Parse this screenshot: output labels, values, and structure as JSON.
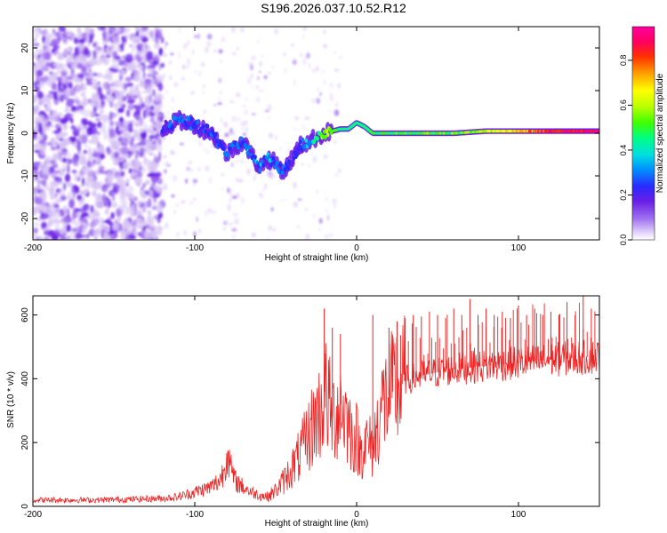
{
  "figure_title": "S196.2026.037.10.52.R12",
  "chart_data": [
    {
      "type": "heatmap",
      "name": "spectrogram",
      "xlabel": "Height of straight line (km)",
      "ylabel": "Frequency (Hz)",
      "xlim": [
        -200,
        150
      ],
      "ylim": [
        -25,
        25
      ],
      "x_ticks": [
        -200,
        -100,
        0,
        100
      ],
      "x_tick_labels": [
        "-200",
        "-100",
        "0",
        "100"
      ],
      "y_ticks": [
        -20,
        -10,
        0,
        10,
        20
      ],
      "y_tick_labels": [
        "-20",
        "-10",
        "0",
        "10",
        "20"
      ],
      "colorbar": {
        "label": "Normalized spectral amplitude",
        "range": [
          0,
          0.95
        ],
        "ticks": [
          0.0,
          0.2,
          0.4,
          0.6,
          0.8
        ],
        "tick_labels": [
          "0.0",
          "0.2",
          "0.4",
          "0.6",
          "0.8"
        ],
        "colormap": [
          "#ffffff",
          "#dcc8f5",
          "#a070f0",
          "#6a1fe6",
          "#2a2aff",
          "#0080ff",
          "#00e0e0",
          "#00ff80",
          "#40ff00",
          "#c0ff00",
          "#ffff00",
          "#ffa000",
          "#ff3000",
          "#ff0060",
          "#ff00a0"
        ]
      },
      "ridge": {
        "x": [
          -120,
          -110,
          -100,
          -95,
          -90,
          -85,
          -80,
          -75,
          -70,
          -65,
          -60,
          -55,
          -50,
          -45,
          -40,
          -35,
          -30,
          -25,
          -20,
          -15,
          -10,
          -5,
          0,
          5,
          10,
          20,
          40,
          60,
          80,
          100,
          120,
          150
        ],
        "freq": [
          1,
          3,
          2,
          1,
          0,
          -2,
          -5,
          -3,
          -2,
          -5,
          -8,
          -6,
          -7,
          -9,
          -6,
          -3,
          -2,
          -1,
          0,
          0.5,
          1,
          1,
          2.5,
          1.5,
          0,
          0,
          0,
          0,
          0.5,
          0.5,
          0.5,
          0.5
        ],
        "amplitude": [
          0.25,
          0.3,
          0.3,
          0.28,
          0.3,
          0.28,
          0.3,
          0.32,
          0.3,
          0.32,
          0.35,
          0.33,
          0.3,
          0.28,
          0.25,
          0.28,
          0.35,
          0.45,
          0.6,
          0.55,
          0.5,
          0.5,
          0.45,
          0.45,
          0.5,
          0.52,
          0.52,
          0.55,
          0.6,
          0.7,
          0.85,
          0.9
        ]
      },
      "noise_region_x": [
        -200,
        -120
      ]
    },
    {
      "type": "line",
      "name": "snr",
      "xlabel": "Height of straight line (km)",
      "ylabel": "SNR (10 * v/v)",
      "xlim": [
        -200,
        150
      ],
      "ylim": [
        0,
        660
      ],
      "x_ticks": [
        -200,
        -100,
        0,
        100
      ],
      "x_tick_labels": [
        "-200",
        "-100",
        "0",
        "100"
      ],
      "y_ticks": [
        0,
        200,
        400,
        600
      ],
      "y_tick_labels": [
        "0",
        "200",
        "400",
        "600"
      ],
      "color": "#ee2222",
      "series": [
        {
          "name": "SNR",
          "x": [
            -200,
            -180,
            -160,
            -140,
            -120,
            -110,
            -100,
            -90,
            -85,
            -82,
            -80,
            -78,
            -75,
            -70,
            -65,
            -60,
            -55,
            -50,
            -45,
            -40,
            -35,
            -30,
            -25,
            -22,
            -20,
            -18,
            -15,
            -12,
            -10,
            -8,
            -5,
            -2,
            0,
            2,
            5,
            8,
            10,
            12,
            15,
            20,
            25,
            30,
            40,
            50,
            60,
            80,
            100,
            120,
            150
          ],
          "y": [
            20,
            20,
            20,
            22,
            25,
            30,
            45,
            60,
            80,
            110,
            180,
            120,
            80,
            60,
            45,
            35,
            30,
            50,
            80,
            120,
            160,
            220,
            280,
            300,
            360,
            330,
            280,
            300,
            320,
            300,
            260,
            210,
            220,
            170,
            200,
            190,
            180,
            230,
            310,
            350,
            370,
            395,
            410,
            420,
            430,
            440,
            450,
            460,
            470
          ]
        }
      ],
      "spikes": {
        "x": [
          -20,
          -15,
          -10,
          10,
          20,
          25,
          30,
          35,
          40,
          45,
          50,
          55,
          60,
          65,
          70,
          75,
          80,
          85,
          90,
          95,
          100,
          105,
          110,
          115,
          120,
          125,
          130,
          135,
          140,
          145
        ],
        "y": [
          620,
          560,
          540,
          600,
          560,
          580,
          590,
          600,
          595,
          610,
          600,
          590,
          620,
          600,
          650,
          600,
          620,
          600,
          610,
          590,
          630,
          600,
          620,
          600,
          610,
          600,
          640,
          600,
          660,
          620
        ]
      }
    }
  ]
}
